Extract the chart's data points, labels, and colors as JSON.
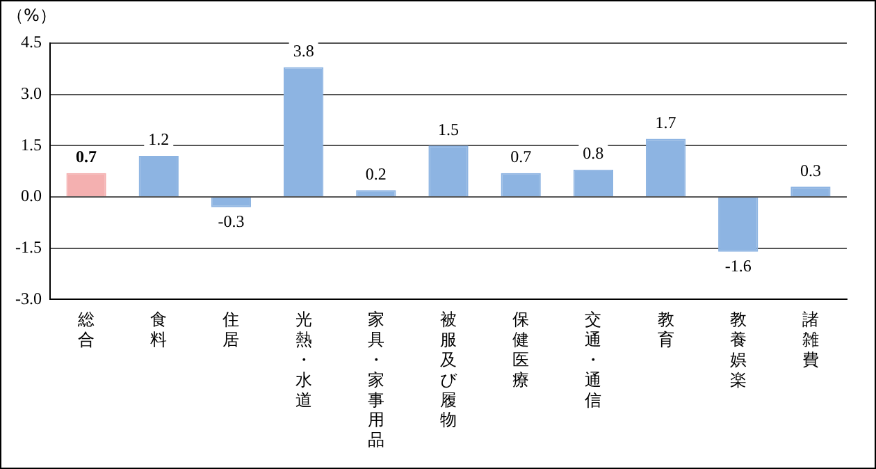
{
  "chart_data": {
    "type": "bar",
    "ylabel": "（%）",
    "categories": [
      "総合",
      "食料",
      "住居",
      "光熱・水道",
      "家具・家事用品",
      "被服及び履物",
      "保健医療",
      "交通・通信",
      "教育",
      "教養娯楽",
      "諸雑費"
    ],
    "values": [
      0.7,
      1.2,
      -0.3,
      3.8,
      0.2,
      1.5,
      0.7,
      0.8,
      1.7,
      -1.6,
      0.3
    ],
    "colors": [
      "#f4b0b0",
      "#8db4e2",
      "#8db4e2",
      "#8db4e2",
      "#8db4e2",
      "#8db4e2",
      "#8db4e2",
      "#8db4e2",
      "#8db4e2",
      "#8db4e2",
      "#8db4e2"
    ],
    "ylim": [
      -3,
      4.5
    ],
    "yticks": [
      {
        "value": -3,
        "label": "-3.0"
      },
      {
        "value": -1.5,
        "label": "-1.5"
      },
      {
        "value": 0,
        "label": "0.0"
      },
      {
        "value": 1.5,
        "label": "1.5"
      },
      {
        "value": 3,
        "label": "3.0"
      },
      {
        "value": 4.5,
        "label": "4.5"
      }
    ],
    "grid": "y",
    "data_labels": true,
    "legend": false
  }
}
